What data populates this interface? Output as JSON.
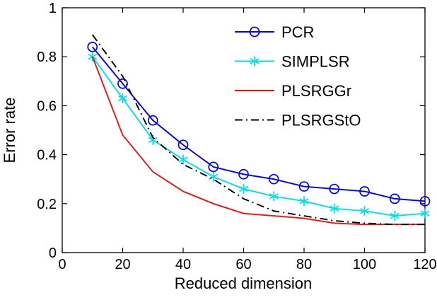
{
  "chart_data": {
    "type": "line",
    "title": "",
    "xlabel": "Reduced dimension",
    "ylabel": "Error rate",
    "xlim": [
      0,
      120
    ],
    "ylim": [
      0,
      1
    ],
    "xticks": [
      0,
      20,
      40,
      60,
      80,
      100,
      120
    ],
    "xticklabels": [
      "0",
      "20",
      "40",
      "60",
      "80",
      "100",
      "120"
    ],
    "yticks": [
      0,
      0.2,
      0.4,
      0.6,
      0.8,
      1
    ],
    "yticklabels": [
      "0",
      "0.2",
      "0.4",
      "0.6",
      "0.8",
      "1"
    ],
    "grid": false,
    "legend_position": "top-right",
    "x": [
      10,
      20,
      30,
      40,
      50,
      60,
      70,
      80,
      90,
      100,
      110,
      120
    ],
    "series": [
      {
        "name": "PCR",
        "color": "#0000ee",
        "marker": "circle",
        "linestyle": "solid",
        "values": [
          0.84,
          0.69,
          0.54,
          0.44,
          0.35,
          0.32,
          0.3,
          0.27,
          0.26,
          0.25,
          0.22,
          0.21
        ]
      },
      {
        "name": "SIMPLSR",
        "color": "#00dfea",
        "marker": "asterisk",
        "linestyle": "solid",
        "values": [
          0.8,
          0.63,
          0.46,
          0.38,
          0.31,
          0.26,
          0.23,
          0.21,
          0.18,
          0.17,
          0.15,
          0.16
        ]
      },
      {
        "name": "PLSRGGr",
        "color": "#ee1111",
        "marker": "none",
        "linestyle": "solid",
        "values": [
          0.8,
          0.48,
          0.33,
          0.25,
          0.2,
          0.16,
          0.15,
          0.14,
          0.12,
          0.115,
          0.115,
          0.115
        ]
      },
      {
        "name": "PLSRGStO",
        "color": "#000000",
        "marker": "none",
        "linestyle": "dashdot",
        "values": [
          0.89,
          0.72,
          0.47,
          0.36,
          0.3,
          0.22,
          0.17,
          0.15,
          0.13,
          0.12,
          0.115,
          0.115
        ]
      }
    ]
  }
}
